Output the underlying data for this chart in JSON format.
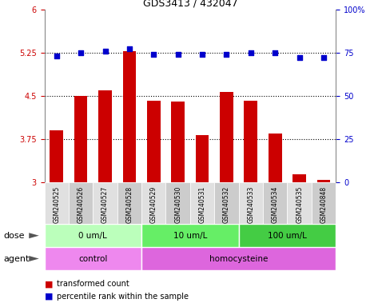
{
  "title": "GDS3413 / 432047",
  "samples": [
    "GSM240525",
    "GSM240526",
    "GSM240527",
    "GSM240528",
    "GSM240529",
    "GSM240530",
    "GSM240531",
    "GSM240532",
    "GSM240533",
    "GSM240534",
    "GSM240535",
    "GSM240848"
  ],
  "bar_values": [
    3.9,
    4.5,
    4.6,
    5.27,
    4.42,
    4.4,
    3.82,
    4.57,
    4.42,
    3.85,
    3.15,
    3.05
  ],
  "dot_values": [
    73,
    75,
    76,
    77,
    74,
    74,
    74,
    74,
    75,
    75,
    72,
    72
  ],
  "bar_color": "#cc0000",
  "dot_color": "#0000cc",
  "ylim_left": [
    3.0,
    6.0
  ],
  "ylim_right": [
    0,
    100
  ],
  "yticks_left": [
    3.0,
    3.75,
    4.5,
    5.25,
    6.0
  ],
  "ytick_labels_left": [
    "3",
    "3.75",
    "4.5",
    "5.25",
    "6"
  ],
  "yticks_right": [
    0,
    25,
    50,
    75,
    100
  ],
  "ytick_labels_right": [
    "0",
    "25",
    "50",
    "75",
    "100%"
  ],
  "hlines": [
    3.75,
    4.5,
    5.25
  ],
  "dose_groups": [
    {
      "label": "0 um/L",
      "start": 0,
      "end": 4,
      "color": "#bbffbb"
    },
    {
      "label": "10 um/L",
      "start": 4,
      "end": 8,
      "color": "#66ee66"
    },
    {
      "label": "100 um/L",
      "start": 8,
      "end": 12,
      "color": "#44cc44"
    }
  ],
  "agent_groups": [
    {
      "label": "control",
      "start": 0,
      "end": 4,
      "color": "#ee88ee"
    },
    {
      "label": "homocysteine",
      "start": 4,
      "end": 12,
      "color": "#dd66dd"
    }
  ],
  "legend_bar_label": "transformed count",
  "legend_dot_label": "percentile rank within the sample",
  "row_label_dose": "dose",
  "row_label_agent": "agent",
  "background_color": "#ffffff",
  "sample_col_color_odd": "#e0e0e0",
  "sample_col_color_even": "#cccccc"
}
